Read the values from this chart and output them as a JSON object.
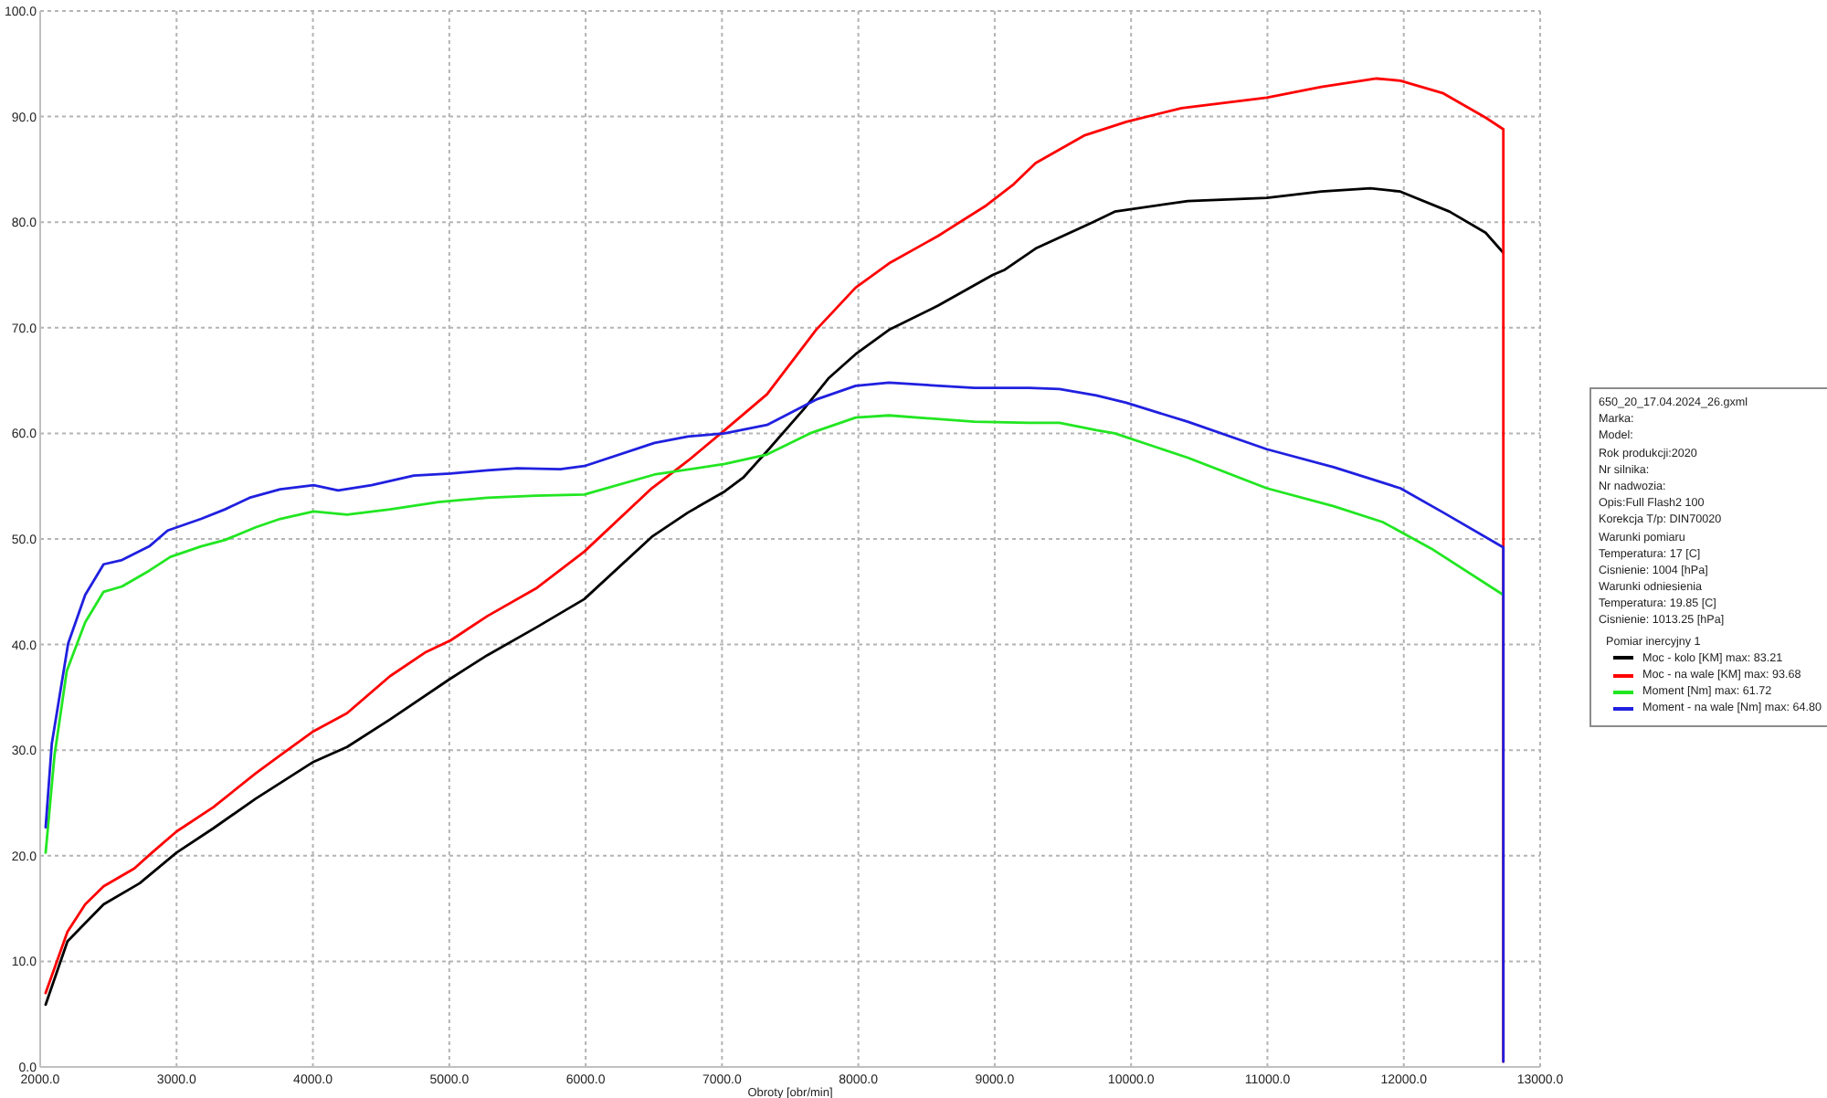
{
  "chart_data": {
    "type": "line",
    "xlabel": "Obroty [obr/min]",
    "xlim": [
      2000,
      13000
    ],
    "xticks": [
      {
        "value": 2000,
        "label": "2000.0"
      },
      {
        "value": 3000,
        "label": "3000.0"
      },
      {
        "value": 4000,
        "label": "4000.0"
      },
      {
        "value": 5000,
        "label": "5000.0"
      },
      {
        "value": 6000,
        "label": "6000.0"
      },
      {
        "value": 7000,
        "label": "7000.0"
      },
      {
        "value": 8000,
        "label": "8000.0"
      },
      {
        "value": 9000,
        "label": "9000.0"
      },
      {
        "value": 10000,
        "label": "10000.0"
      },
      {
        "value": 11000,
        "label": "11000.0"
      },
      {
        "value": 12000,
        "label": "12000.0"
      },
      {
        "value": 13000,
        "label": "13000.0"
      }
    ],
    "ylim": [
      0,
      100
    ],
    "yticks": [
      {
        "value": 0,
        "label": "0.0"
      },
      {
        "value": 10,
        "label": "10.0"
      },
      {
        "value": 20,
        "label": "20.0"
      },
      {
        "value": 30,
        "label": "30.0"
      },
      {
        "value": 40,
        "label": "40.0"
      },
      {
        "value": 50,
        "label": "50.0"
      },
      {
        "value": 60,
        "label": "60.0"
      },
      {
        "value": 70,
        "label": "70.0"
      },
      {
        "value": 80,
        "label": "80.0"
      },
      {
        "value": 90,
        "label": "90.0"
      },
      {
        "value": 100,
        "label": "100.0"
      }
    ],
    "grid": true,
    "legend": "right",
    "legend_title": "Pomiar inercyjny 1",
    "annotations": [
      "650_20_17.04.2024_26.gxml",
      "Marka:",
      "Model:",
      "Rok produkcji:2020",
      "Nr silnika:",
      "Nr nadwozia:",
      "Opis:Full Flash2 100",
      "Korekcja T/p: DIN70020",
      "Warunki pomiaru",
      "Temperatura: 17 [C]",
      "Cisnienie: 1004 [hPa]",
      "Warunki odniesienia",
      "Temperatura: 19.85 [C]",
      "Cisnienie: 1013.25 [hPa]"
    ],
    "series": [
      {
        "name": "Moc - kolo [KM] max: 83.21",
        "color": "#000000",
        "x": [
          2040,
          2200,
          2465,
          2730,
          3000,
          3270,
          3580,
          4005,
          4250,
          4565,
          5000,
          5280,
          5635,
          5990,
          6485,
          6750,
          7020,
          7155,
          7330,
          7600,
          7780,
          7980,
          8225,
          8585,
          8985,
          9075,
          9300,
          9720,
          9880,
          10415,
          10995,
          11395,
          11755,
          11975,
          12335,
          12600,
          12730
        ],
        "values": [
          5.9,
          11.9,
          15.4,
          17.4,
          20.3,
          22.6,
          25.4,
          28.9,
          30.3,
          32.9,
          36.7,
          39.0,
          41.6,
          44.3,
          50.2,
          52.5,
          54.5,
          55.8,
          58.3,
          62.3,
          65.2,
          67.5,
          69.8,
          72.1,
          75.0,
          75.5,
          77.5,
          80.0,
          81.0,
          82.0,
          82.3,
          82.9,
          83.2,
          82.9,
          81.0,
          79.0,
          77.1
        ]
      },
      {
        "name": "Moc - na wale [KM] max: 93.68",
        "color": "#ff0000",
        "x": [
          2040,
          2200,
          2330,
          2465,
          2690,
          2820,
          3000,
          3270,
          3580,
          3760,
          4005,
          4250,
          4565,
          4830,
          5010,
          5280,
          5635,
          5990,
          6485,
          6750,
          7020,
          7330,
          7690,
          7980,
          8225,
          8585,
          8940,
          9140,
          9300,
          9655,
          9965,
          10370,
          10995,
          11395,
          11800,
          11975,
          12290,
          12600,
          12730,
          12730
        ],
        "values": [
          7.0,
          12.8,
          15.4,
          17.1,
          18.8,
          20.3,
          22.3,
          24.6,
          27.8,
          29.5,
          31.8,
          33.5,
          37.0,
          39.3,
          40.4,
          42.7,
          45.3,
          48.8,
          54.8,
          57.4,
          60.3,
          63.7,
          69.8,
          73.8,
          76.1,
          78.7,
          81.6,
          83.6,
          85.6,
          88.2,
          89.5,
          90.8,
          91.8,
          92.8,
          93.6,
          93.4,
          92.2,
          89.9,
          88.8,
          0.5
        ]
      },
      {
        "name": "Moment [Nm] max: 61.72",
        "color": "#22e622",
        "x": [
          2040,
          2105,
          2195,
          2330,
          2465,
          2600,
          2800,
          2955,
          3180,
          3355,
          3580,
          3760,
          4005,
          4250,
          4565,
          4920,
          5280,
          5635,
          5990,
          6505,
          7020,
          7330,
          7645,
          7980,
          8225,
          8850,
          9250,
          9475,
          9745,
          9880,
          10415,
          10995,
          11485,
          11845,
          12200,
          12730
        ],
        "values": [
          20.3,
          29.5,
          37.5,
          42.1,
          45.0,
          45.5,
          47.0,
          48.3,
          49.3,
          49.9,
          51.1,
          51.9,
          52.6,
          52.3,
          52.8,
          53.5,
          53.9,
          54.1,
          54.2,
          56.1,
          57.1,
          58.0,
          60.0,
          61.5,
          61.7,
          61.1,
          61.0,
          61.0,
          60.3,
          60.0,
          57.7,
          54.8,
          53.1,
          51.6,
          49.1,
          44.7
        ]
      },
      {
        "name": "Moment - na wale [Nm] max: 64.80",
        "color": "#2020e0",
        "x": [
          2040,
          2085,
          2205,
          2330,
          2465,
          2600,
          2800,
          2935,
          3180,
          3355,
          3535,
          3760,
          4005,
          4185,
          4430,
          4740,
          5010,
          5280,
          5500,
          5815,
          5990,
          6505,
          6750,
          7020,
          7330,
          7690,
          7980,
          8225,
          8850,
          9250,
          9475,
          9745,
          9965,
          10415,
          10995,
          11485,
          11975,
          12290,
          12730,
          12730
        ],
        "values": [
          22.7,
          30.6,
          40.1,
          44.7,
          47.6,
          48.0,
          49.3,
          50.8,
          51.9,
          52.8,
          53.9,
          54.7,
          55.1,
          54.6,
          55.1,
          56.0,
          56.2,
          56.5,
          56.7,
          56.6,
          56.9,
          59.1,
          59.7,
          60.0,
          60.8,
          63.2,
          64.5,
          64.8,
          64.3,
          64.3,
          64.2,
          63.6,
          62.9,
          61.1,
          58.5,
          56.8,
          54.8,
          52.5,
          49.2,
          0.5
        ]
      }
    ]
  }
}
